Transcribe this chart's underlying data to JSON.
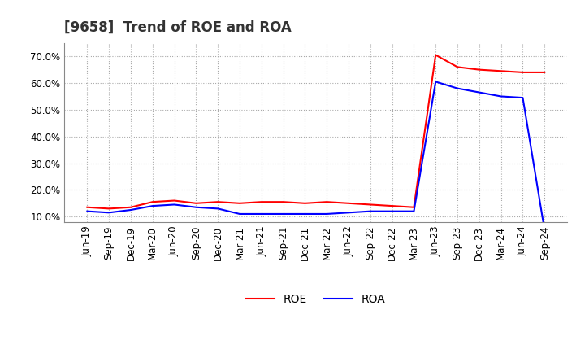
{
  "title": "[9658]  Trend of ROE and ROA",
  "x_labels": [
    "Jun-19",
    "Sep-19",
    "Dec-19",
    "Mar-20",
    "Jun-20",
    "Sep-20",
    "Dec-20",
    "Mar-21",
    "Jun-21",
    "Sep-21",
    "Dec-21",
    "Mar-22",
    "Jun-22",
    "Sep-22",
    "Dec-22",
    "Mar-23",
    "Jun-23",
    "Sep-23",
    "Dec-23",
    "Mar-24",
    "Jun-24",
    "Sep-24"
  ],
  "roe": [
    13.5,
    13.0,
    13.5,
    15.5,
    16.0,
    15.0,
    15.5,
    15.0,
    15.5,
    15.5,
    15.0,
    15.5,
    15.0,
    14.5,
    14.0,
    13.5,
    70.5,
    66.0,
    65.0,
    64.5,
    64.0,
    64.0
  ],
  "roa": [
    12.0,
    11.5,
    12.5,
    14.0,
    14.5,
    13.5,
    13.0,
    11.0,
    11.0,
    11.0,
    11.0,
    11.0,
    11.5,
    12.0,
    12.0,
    12.0,
    60.5,
    58.0,
    56.5,
    55.0,
    54.5,
    5.0
  ],
  "roe_color": "#ff0000",
  "roa_color": "#0000ff",
  "background_color": "#ffffff",
  "plot_bg_color": "#ffffff",
  "grid_color": "#aaaaaa",
  "ylim": [
    8.0,
    75.0
  ],
  "ytick_values": [
    10.0,
    20.0,
    30.0,
    40.0,
    50.0,
    60.0,
    70.0
  ],
  "title_fontsize": 12,
  "legend_fontsize": 10,
  "tick_fontsize": 8.5
}
